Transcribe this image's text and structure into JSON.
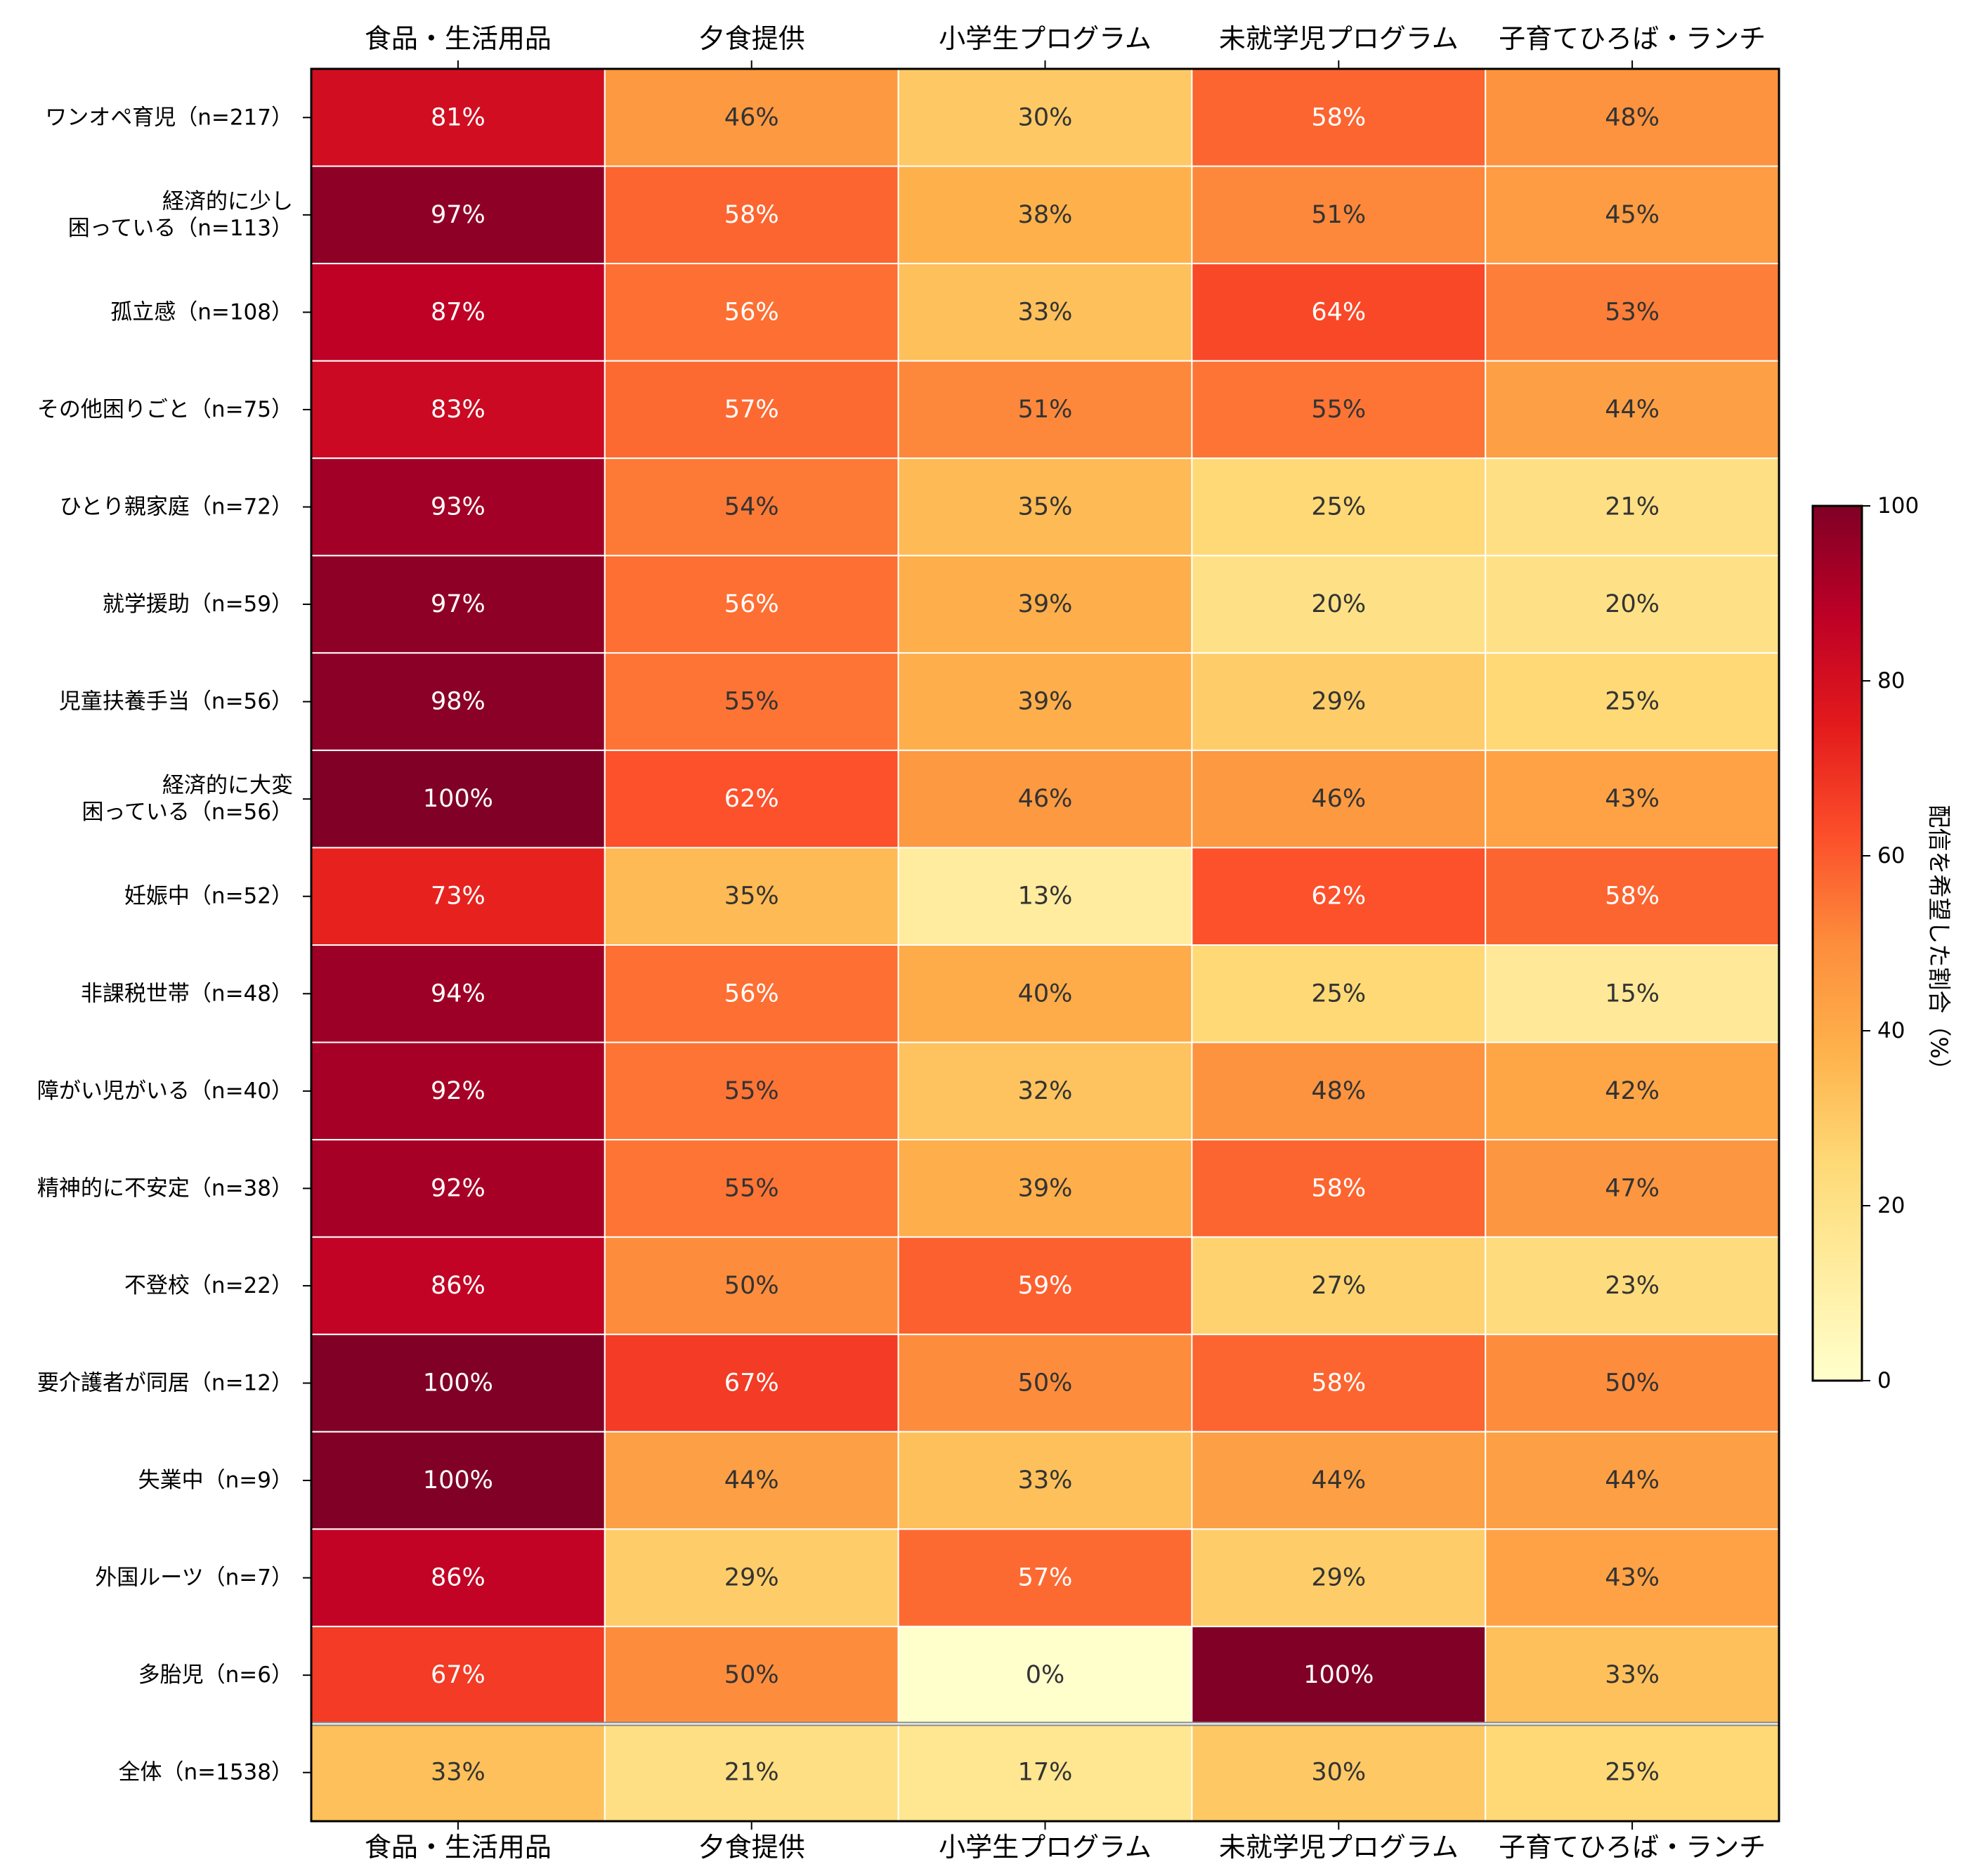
{
  "chart_data": {
    "type": "heatmap",
    "columns": [
      "食品・生活用品",
      "夕食提供",
      "小学生プログラム",
      "未就学児プログラム",
      "子育てひろば・ランチ"
    ],
    "rows": [
      {
        "label": [
          "ワンオペ育児（n=217）"
        ],
        "values": [
          81,
          46,
          30,
          58,
          48
        ]
      },
      {
        "label": [
          "経済的に少し",
          "困っている（n=113）"
        ],
        "values": [
          97,
          58,
          38,
          51,
          45
        ]
      },
      {
        "label": [
          "孤立感（n=108）"
        ],
        "values": [
          87,
          56,
          33,
          64,
          53
        ]
      },
      {
        "label": [
          "その他困りごと（n=75）"
        ],
        "values": [
          83,
          57,
          51,
          55,
          44
        ]
      },
      {
        "label": [
          "ひとり親家庭（n=72）"
        ],
        "values": [
          93,
          54,
          35,
          25,
          21
        ]
      },
      {
        "label": [
          "就学援助（n=59）"
        ],
        "values": [
          97,
          56,
          39,
          20,
          20
        ]
      },
      {
        "label": [
          "児童扶養手当（n=56）"
        ],
        "values": [
          98,
          55,
          39,
          29,
          25
        ]
      },
      {
        "label": [
          "経済的に大変",
          "困っている（n=56）"
        ],
        "values": [
          100,
          62,
          46,
          46,
          43
        ]
      },
      {
        "label": [
          "妊娠中（n=52）"
        ],
        "values": [
          73,
          35,
          13,
          62,
          58
        ]
      },
      {
        "label": [
          "非課税世帯（n=48）"
        ],
        "values": [
          94,
          56,
          40,
          25,
          15
        ]
      },
      {
        "label": [
          "障がい児がいる（n=40）"
        ],
        "values": [
          92,
          55,
          32,
          48,
          42
        ]
      },
      {
        "label": [
          "精神的に不安定（n=38）"
        ],
        "values": [
          92,
          55,
          39,
          58,
          47
        ]
      },
      {
        "label": [
          "不登校（n=22）"
        ],
        "values": [
          86,
          50,
          59,
          27,
          23
        ]
      },
      {
        "label": [
          "要介護者が同居（n=12）"
        ],
        "values": [
          100,
          67,
          50,
          58,
          50
        ]
      },
      {
        "label": [
          "失業中（n=9）"
        ],
        "values": [
          100,
          44,
          33,
          44,
          44
        ]
      },
      {
        "label": [
          "外国ルーツ（n=7）"
        ],
        "values": [
          86,
          29,
          57,
          29,
          43
        ]
      },
      {
        "label": [
          "多胎児（n=6）"
        ],
        "values": [
          67,
          50,
          0,
          100,
          33
        ]
      },
      {
        "label": [
          "全体（n=1538）"
        ],
        "values": [
          33,
          21,
          17,
          30,
          25
        ]
      }
    ],
    "value_suffix": "%",
    "colorbar": {
      "label": "配信を希望した割合（%）",
      "range": [
        0,
        100
      ],
      "ticks": [
        0,
        20,
        40,
        60,
        80,
        100
      ],
      "colormap": "YlOrRd"
    },
    "column_labels_position": "top-and-bottom",
    "grid": false
  }
}
